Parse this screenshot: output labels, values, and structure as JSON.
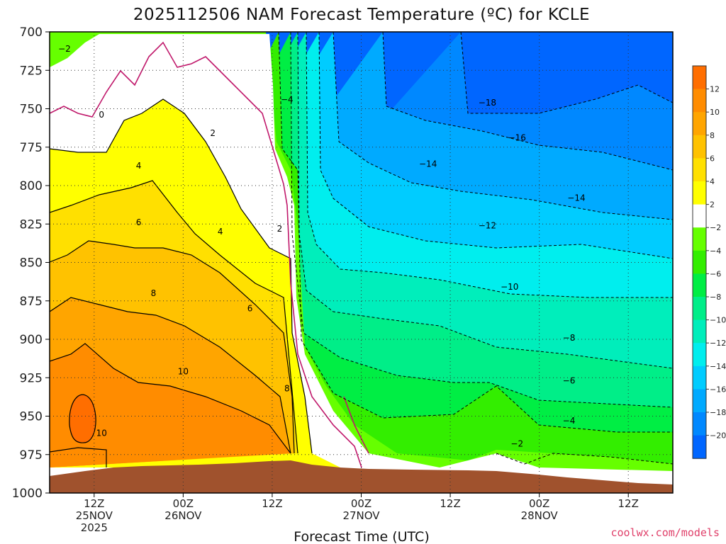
{
  "chart_data": {
    "type": "heatmap",
    "title": "2025112506 NAM Forecast Temperature (ºC) for KCLE",
    "xlabel": "Forecast Time (UTC)",
    "ylabel": "",
    "y_axis": {
      "ticks": [
        "700",
        "725",
        "750",
        "775",
        "800",
        "825",
        "850",
        "875",
        "900",
        "925",
        "950",
        "975",
        "1000"
      ],
      "values": [
        700,
        725,
        750,
        775,
        800,
        825,
        850,
        875,
        900,
        925,
        950,
        975,
        1000
      ],
      "ylim": [
        700,
        1000
      ]
    },
    "x_axis": {
      "ticks": [
        {
          "l1": "12Z",
          "l2": "25NOV",
          "l3": "2025",
          "hour": 6
        },
        {
          "l1": "00Z",
          "l2": "26NOV",
          "l3": "",
          "hour": 18
        },
        {
          "l1": "12Z",
          "l2": "",
          "l3": "",
          "hour": 30
        },
        {
          "l1": "00Z",
          "l2": "27NOV",
          "l3": "",
          "hour": 42
        },
        {
          "l1": "12Z",
          "l2": "",
          "l3": "",
          "hour": 54
        },
        {
          "l1": "00Z",
          "l2": "28NOV",
          "l3": "",
          "hour": 66
        },
        {
          "l1": "12Z",
          "l2": "",
          "l3": "",
          "hour": 78
        }
      ],
      "xlim": [
        0,
        84
      ]
    },
    "grid": true,
    "colorbar": {
      "labels": [
        "12",
        "10",
        "8",
        "6",
        "4",
        "2",
        "−2",
        "−4",
        "−6",
        "−8",
        "−10",
        "−12",
        "−14",
        "−16",
        "−18",
        "−20"
      ],
      "colors": [
        "#ff6e00",
        "#ff8c00",
        "#ffa500",
        "#ffc200",
        "#ffe000",
        "#ffff00",
        "#ffffff",
        "#66ff00",
        "#33ee00",
        "#00ee44",
        "#00ee88",
        "#00eebb",
        "#00eeee",
        "#00ccff",
        "#00aaff",
        "#0088ff",
        "#0066ff"
      ]
    },
    "contour_labels": [
      {
        "text": "−2",
        "hour": 2,
        "p": 711
      },
      {
        "text": "0",
        "hour": 7,
        "p": 754
      },
      {
        "text": "2",
        "hour": 22,
        "p": 766
      },
      {
        "text": "4",
        "hour": 12,
        "p": 787
      },
      {
        "text": "6",
        "hour": 12,
        "p": 824
      },
      {
        "text": "4",
        "hour": 23,
        "p": 830
      },
      {
        "text": "2",
        "hour": 31,
        "p": 828
      },
      {
        "text": "8",
        "hour": 14,
        "p": 870
      },
      {
        "text": "6",
        "hour": 27,
        "p": 880
      },
      {
        "text": "10",
        "hour": 18,
        "p": 921
      },
      {
        "text": "8",
        "hour": 32,
        "p": 932
      },
      {
        "text": "10",
        "hour": 7,
        "p": 961
      },
      {
        "text": "−4",
        "hour": 32,
        "p": 744
      },
      {
        "text": "−18",
        "hour": 59,
        "p": 746
      },
      {
        "text": "−16",
        "hour": 63,
        "p": 769
      },
      {
        "text": "−14",
        "hour": 51,
        "p": 786
      },
      {
        "text": "−14",
        "hour": 71,
        "p": 808
      },
      {
        "text": "−12",
        "hour": 59,
        "p": 826
      },
      {
        "text": "−10",
        "hour": 62,
        "p": 866
      },
      {
        "text": "−8",
        "hour": 70,
        "p": 899
      },
      {
        "text": "−6",
        "hour": 70,
        "p": 927
      },
      {
        "text": "−4",
        "hour": 70,
        "p": 953
      },
      {
        "text": "−2",
        "hour": 63,
        "p": 968
      }
    ],
    "terrain_color": "#a0522d"
  },
  "credit": "coolwx.com/models"
}
